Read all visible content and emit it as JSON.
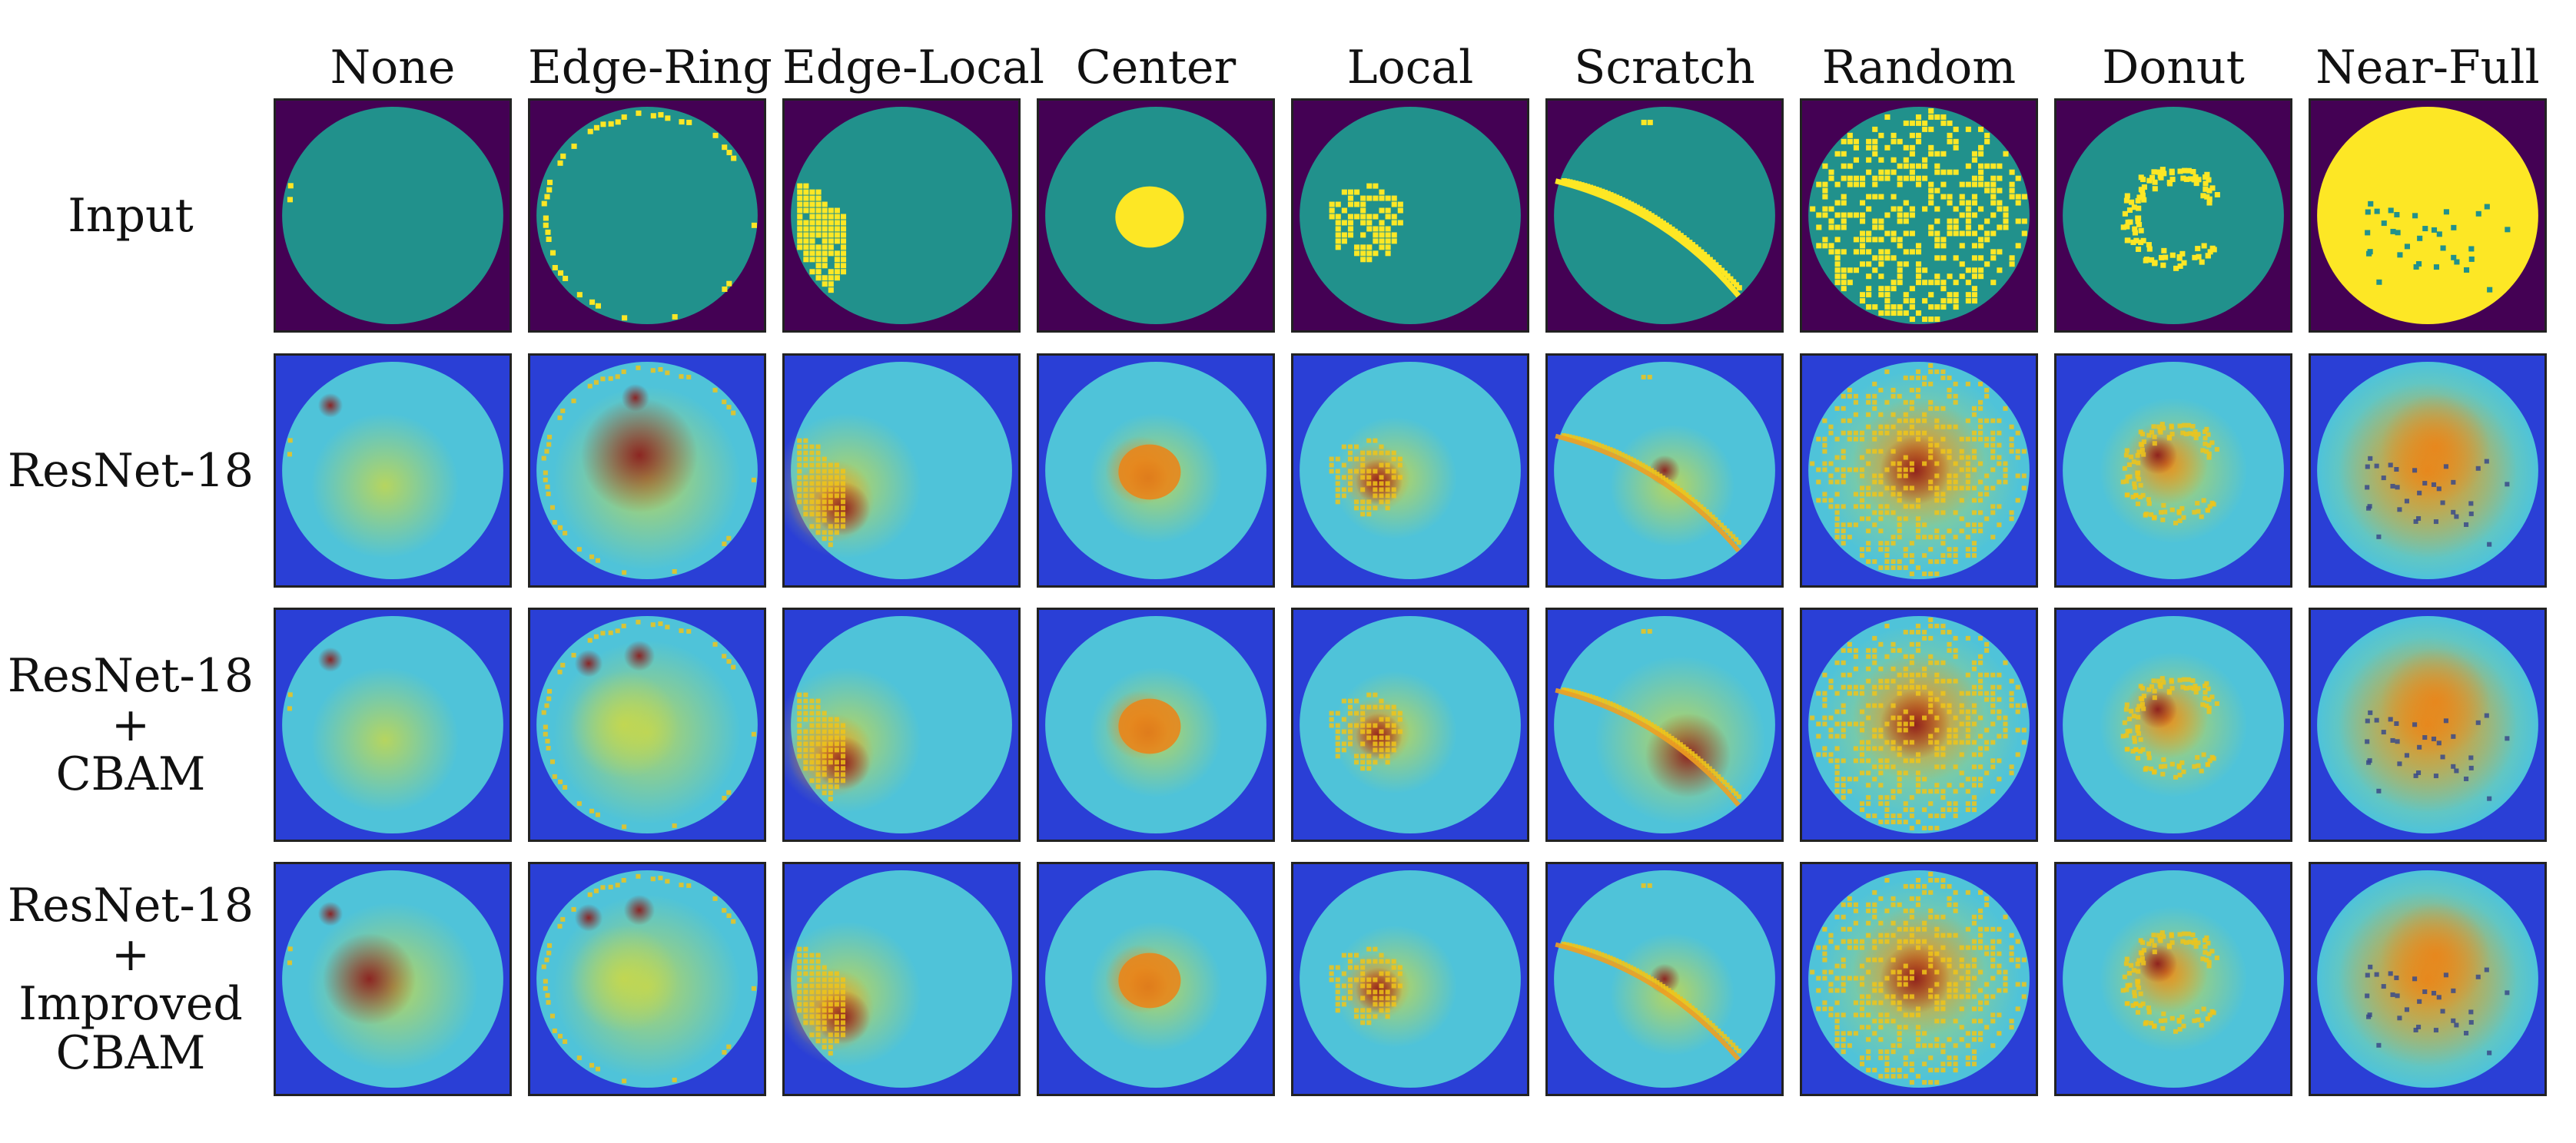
{
  "figure": {
    "columns": [
      "None",
      "Edge-Ring",
      "Edge-Local",
      "Center",
      "Local",
      "Scratch",
      "Random",
      "Donut",
      "Near-Full"
    ],
    "rows": [
      {
        "id": "input",
        "lines": [
          "Input"
        ]
      },
      {
        "id": "resnet18",
        "lines": [
          "ResNet-18"
        ]
      },
      {
        "id": "resnet18-cbam",
        "lines": [
          "ResNet-18",
          "+",
          "CBAM"
        ]
      },
      {
        "id": "resnet18-improved-cbam",
        "lines": [
          "ResNet-18",
          "+",
          "Improved",
          "CBAM"
        ]
      }
    ],
    "colors": {
      "wafer_background": "#440154",
      "wafer_normal": "#21918c",
      "wafer_defect": "#fde725",
      "heat_low": "#2a3fd6",
      "heat_mid": "#4fc3d9",
      "heat_warm": "#c8d84a",
      "heat_high": "#e8861c",
      "heat_peak": "#8b1d1d"
    }
  }
}
